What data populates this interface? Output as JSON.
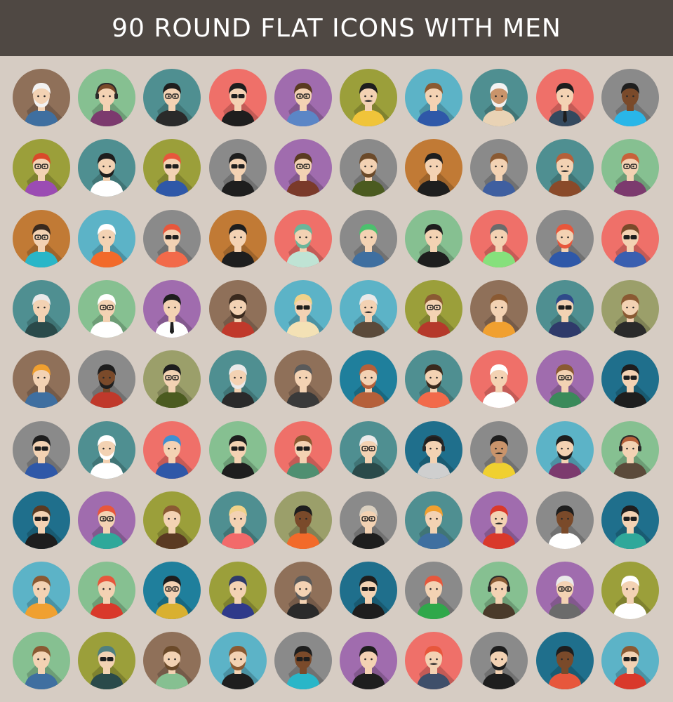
{
  "header": {
    "title": "90 ROUND FLAT ICONS WITH MEN"
  },
  "palette": {
    "header_bg": "#4f4843",
    "page_bg": "#d6ccc3"
  },
  "avatars": [
    {
      "bg": "#8f7059",
      "hair": "#f2f2f2",
      "skin": "#f3d2b3",
      "shirt": "#3f6fa0",
      "acc": "beard"
    },
    {
      "bg": "#86c091",
      "hair": "#7a4a2a",
      "skin": "#f3d2b3",
      "shirt": "#7c3a6e",
      "acc": "headset"
    },
    {
      "bg": "#4f8f91",
      "hair": "#1e1e1e",
      "skin": "#f3d2b3",
      "shirt": "#2a2a2a",
      "acc": "glasses"
    },
    {
      "bg": "#ef7069",
      "hair": "#1e1e1e",
      "skin": "#f3d2b3",
      "shirt": "#1e1e1e",
      "acc": "sunglasses"
    },
    {
      "bg": "#a06cae",
      "hair": "#5a3a22",
      "skin": "#f3d2b3",
      "shirt": "#5b86c6",
      "acc": "glasses"
    },
    {
      "bg": "#9b9f3a",
      "hair": "#1e1e1e",
      "skin": "#f3d2b3",
      "shirt": "#f0c43a",
      "acc": "mustache"
    },
    {
      "bg": "#5cb3c7",
      "hair": "#8a5a33",
      "skin": "#f3d2b3",
      "shirt": "#2f58a8",
      "acc": "none"
    },
    {
      "bg": "#4f8f91",
      "hair": "#f2f2f2",
      "skin": "#c9946b",
      "shirt": "#e9d3b5",
      "acc": "beard"
    },
    {
      "bg": "#ef7069",
      "hair": "#1e1e1e",
      "skin": "#f3d2b3",
      "shirt": "#34495e",
      "acc": "tie"
    },
    {
      "bg": "#8a8a8a",
      "hair": "#1e1e1e",
      "skin": "#7a4a2a",
      "shirt": "#29b6e8",
      "acc": "none"
    },
    {
      "bg": "#9b9f3a",
      "hair": "#d94a2a",
      "skin": "#f3d2b3",
      "shirt": "#9b4cb3",
      "acc": "glasses"
    },
    {
      "bg": "#4f8f91",
      "hair": "#1e1e1e",
      "skin": "#f3d2b3",
      "shirt": "#ffffff",
      "acc": "beard"
    },
    {
      "bg": "#9b9f3a",
      "hair": "#e7573c",
      "skin": "#f3d2b3",
      "shirt": "#2f58a8",
      "acc": "sunglasses"
    },
    {
      "bg": "#8a8a8a",
      "hair": "#1e1e1e",
      "skin": "#f3d2b3",
      "shirt": "#1e1e1e",
      "acc": "sunglasses"
    },
    {
      "bg": "#a06cae",
      "hair": "#5a3a22",
      "skin": "#f3d2b3",
      "shirt": "#7a3a2a",
      "acc": "glasses"
    },
    {
      "bg": "#8a8a8a",
      "hair": "#6b4a2a",
      "skin": "#f3d2b3",
      "shirt": "#4b5b20",
      "acc": "beard"
    },
    {
      "bg": "#c17a35",
      "hair": "#1e1e1e",
      "skin": "#f3d2b3",
      "shirt": "#1e1e1e",
      "acc": "none"
    },
    {
      "bg": "#8a8a8a",
      "hair": "#8a5a33",
      "skin": "#f3d2b3",
      "shirt": "#3f5fa0",
      "acc": "none"
    },
    {
      "bg": "#4f8f91",
      "hair": "#b5603a",
      "skin": "#f3d2b3",
      "shirt": "#8a4a2a",
      "acc": "mustache"
    },
    {
      "bg": "#86c091",
      "hair": "#c8623a",
      "skin": "#f3d2b3",
      "shirt": "#7c3a6e",
      "acc": "glasses"
    },
    {
      "bg": "#c17a35",
      "hair": "#3a2a1e",
      "skin": "#f3d2b3",
      "shirt": "#29b6c8",
      "acc": "glasses"
    },
    {
      "bg": "#5cb3c7",
      "hair": "#ffffff",
      "skin": "#f3d2b3",
      "shirt": "#f26a2a",
      "acc": "none"
    },
    {
      "bg": "#8a8a8a",
      "hair": "#e7573c",
      "skin": "#f3d2b3",
      "shirt": "#f26a4a",
      "acc": "sunglasses"
    },
    {
      "bg": "#c17a35",
      "hair": "#1e1e1e",
      "skin": "#f3d2b3",
      "shirt": "#1e1e1e",
      "acc": "none"
    },
    {
      "bg": "#ef7069",
      "hair": "#6bb59a",
      "skin": "#f3d2b3",
      "shirt": "#bfe3d4",
      "acc": "beard"
    },
    {
      "bg": "#8a8a8a",
      "hair": "#4cc06e",
      "skin": "#f3d2b3",
      "shirt": "#3f6fa0",
      "acc": "none"
    },
    {
      "bg": "#86c091",
      "hair": "#1e1e1e",
      "skin": "#f3d2b3",
      "shirt": "#1e1e1e",
      "acc": "none"
    },
    {
      "bg": "#ef7069",
      "hair": "#6b6b6b",
      "skin": "#f3d2b3",
      "shirt": "#86e07c",
      "acc": "none"
    },
    {
      "bg": "#8a8a8a",
      "hair": "#e7573c",
      "skin": "#f3d2b3",
      "shirt": "#2f58a8",
      "acc": "beard"
    },
    {
      "bg": "#ef7069",
      "hair": "#7a4a2a",
      "skin": "#f3d2b3",
      "shirt": "#3a5fb0",
      "acc": "sunglasses"
    },
    {
      "bg": "#4f8f91",
      "hair": "#e9e9e9",
      "skin": "#f3d2b3",
      "shirt": "#2a4a4a",
      "acc": "none"
    },
    {
      "bg": "#86c091",
      "hair": "#ffffff",
      "skin": "#f3d2b3",
      "shirt": "#ffffff",
      "acc": "glasses"
    },
    {
      "bg": "#a06cae",
      "hair": "#1e1e1e",
      "skin": "#f3d2b3",
      "shirt": "#ffffff",
      "acc": "tie"
    },
    {
      "bg": "#8f7059",
      "hair": "#3a2a1e",
      "skin": "#f3d2b3",
      "shirt": "#c0392b",
      "acc": "beard"
    },
    {
      "bg": "#5cb3c7",
      "hair": "#f0d28a",
      "skin": "#f3d2b3",
      "shirt": "#f3e1b5",
      "acc": "sunglasses"
    },
    {
      "bg": "#5cb3c7",
      "hair": "#e9e9e9",
      "skin": "#f3d2b3",
      "shirt": "#5b4a3a",
      "acc": "mustache"
    },
    {
      "bg": "#9b9f3a",
      "hair": "#8a5a33",
      "skin": "#f3d2b3",
      "shirt": "#b5392b",
      "acc": "glasses"
    },
    {
      "bg": "#8f7059",
      "hair": "#8a5a33",
      "skin": "#f3d2b3",
      "shirt": "#f0a030",
      "acc": "none"
    },
    {
      "bg": "#4f8f91",
      "hair": "#2f4a8a",
      "skin": "#f3d2b3",
      "shirt": "#2f3a6a",
      "acc": "sunglasses"
    },
    {
      "bg": "#9b9f6a",
      "hair": "#8a5a33",
      "skin": "#f3d2b3",
      "shirt": "#2a2a2a",
      "acc": "beard"
    },
    {
      "bg": "#8f7059",
      "hair": "#f0a030",
      "skin": "#f3d2b3",
      "shirt": "#3f6fa0",
      "acc": "none"
    },
    {
      "bg": "#8a8a8a",
      "hair": "#1e1e1e",
      "skin": "#7a4a2a",
      "shirt": "#c0392b",
      "acc": "beard"
    },
    {
      "bg": "#9b9f6a",
      "hair": "#1e1e1e",
      "skin": "#f3d2b3",
      "shirt": "#4b5b20",
      "acc": "glasses"
    },
    {
      "bg": "#4f8f91",
      "hair": "#e9e9e9",
      "skin": "#f3d2b3",
      "shirt": "#2a2a2a",
      "acc": "beard"
    },
    {
      "bg": "#8f7059",
      "hair": "#5a5a5a",
      "skin": "#f3d2b3",
      "shirt": "#3a3a3a",
      "acc": "none"
    },
    {
      "bg": "#1f7f9c",
      "hair": "#b5603a",
      "skin": "#f3d2b3",
      "shirt": "#b5603a",
      "acc": "beard"
    },
    {
      "bg": "#4f8f91",
      "hair": "#3a2a1e",
      "skin": "#f3d2b3",
      "shirt": "#f26a4a",
      "acc": "beard"
    },
    {
      "bg": "#ef7069",
      "hair": "#ffffff",
      "skin": "#f3d2b3",
      "shirt": "#ffffff",
      "acc": "none"
    },
    {
      "bg": "#a06cae",
      "hair": "#8a5a33",
      "skin": "#f3d2b3",
      "shirt": "#3a8a5a",
      "acc": "glasses"
    },
    {
      "bg": "#1f6f8c",
      "hair": "#1e1e1e",
      "skin": "#f3d2b3",
      "shirt": "#1e1e1e",
      "acc": "sunglasses"
    },
    {
      "bg": "#8a8a8a",
      "hair": "#1e1e1e",
      "skin": "#f3d2b3",
      "shirt": "#2f58a8",
      "acc": "sunglasses"
    },
    {
      "bg": "#4f8f91",
      "hair": "#ffffff",
      "skin": "#f3d2b3",
      "shirt": "#ffffff",
      "acc": "beard"
    },
    {
      "bg": "#ef7069",
      "hair": "#3f8fd0",
      "skin": "#f3d2b3",
      "shirt": "#2f58a8",
      "acc": "none"
    },
    {
      "bg": "#86c091",
      "hair": "#1e1e1e",
      "skin": "#f3d2b3",
      "shirt": "#1e1e1e",
      "acc": "sunglasses"
    },
    {
      "bg": "#ef7069",
      "hair": "#8a5a33",
      "skin": "#f3d2b3",
      "shirt": "#4f8f71",
      "acc": "sunglasses"
    },
    {
      "bg": "#4f8f91",
      "hair": "#e9e9e9",
      "skin": "#f3d2b3",
      "shirt": "#2a4a4a",
      "acc": "glasses"
    },
    {
      "bg": "#1f6f8c",
      "hair": "#1e1e1e",
      "skin": "#f3d2b3",
      "shirt": "#cfcfcf",
      "acc": "headset"
    },
    {
      "bg": "#8a8a8a",
      "hair": "#1e1e1e",
      "skin": "#c9946b",
      "shirt": "#f0d030",
      "acc": "mustache"
    },
    {
      "bg": "#5cb3c7",
      "hair": "#1e1e1e",
      "skin": "#f3d2b3",
      "shirt": "#7c3a6e",
      "acc": "beard"
    },
    {
      "bg": "#86c091",
      "hair": "#b5603a",
      "skin": "#f3d2b3",
      "shirt": "#5b4a3a",
      "acc": "headset"
    },
    {
      "bg": "#1f6f8c",
      "hair": "#5a3a22",
      "skin": "#f3d2b3",
      "shirt": "#1e1e1e",
      "acc": "sunglasses"
    },
    {
      "bg": "#a06cae",
      "hair": "#e7573c",
      "skin": "#f3d2b3",
      "shirt": "#2fa89a",
      "acc": "glasses"
    },
    {
      "bg": "#9b9f3a",
      "hair": "#8a5a33",
      "skin": "#f3d2b3",
      "shirt": "#5a3a22",
      "acc": "none"
    },
    {
      "bg": "#4f8f91",
      "hair": "#f0d28a",
      "skin": "#f3d2b3",
      "shirt": "#f26a6a",
      "acc": "none"
    },
    {
      "bg": "#9b9f6a",
      "hair": "#1e1e1e",
      "skin": "#7a4a2a",
      "shirt": "#f26a2a",
      "acc": "none"
    },
    {
      "bg": "#8a8a8a",
      "hair": "#d9cfc0",
      "skin": "#f3d2b3",
      "shirt": "#1e1e1e",
      "acc": "glasses"
    },
    {
      "bg": "#4f8f91",
      "hair": "#f0a030",
      "skin": "#f3d2b3",
      "shirt": "#3f6fa0",
      "acc": "none"
    },
    {
      "bg": "#a06cae",
      "hair": "#d9392b",
      "skin": "#f3d2b3",
      "shirt": "#d9392b",
      "acc": "mustache"
    },
    {
      "bg": "#8a8a8a",
      "hair": "#1e1e1e",
      "skin": "#7a4a2a",
      "shirt": "#ffffff",
      "acc": "none"
    },
    {
      "bg": "#1f6f8c",
      "hair": "#1e1e1e",
      "skin": "#f3d2b3",
      "shirt": "#2fa89a",
      "acc": "sunglasses"
    },
    {
      "bg": "#5cb3c7",
      "hair": "#8a5a33",
      "skin": "#f3d2b3",
      "shirt": "#f0a030",
      "acc": "none"
    },
    {
      "bg": "#86c091",
      "hair": "#e7573c",
      "skin": "#f3d2b3",
      "shirt": "#d9392b",
      "acc": "none"
    },
    {
      "bg": "#1f7f9c",
      "hair": "#1e1e1e",
      "skin": "#f3d2b3",
      "shirt": "#d9b030",
      "acc": "glasses"
    },
    {
      "bg": "#9b9f3a",
      "hair": "#2f3a6a",
      "skin": "#f3d2b3",
      "shirt": "#2f3a8a",
      "acc": "none"
    },
    {
      "bg": "#8f7059",
      "hair": "#5a5a5a",
      "skin": "#f3d2b3",
      "shirt": "#2a2a2a",
      "acc": "beard"
    },
    {
      "bg": "#1f6f8c",
      "hair": "#1e1e1e",
      "skin": "#f3d2b3",
      "shirt": "#1e1e1e",
      "acc": "sunglasses"
    },
    {
      "bg": "#8a8a8a",
      "hair": "#e7573c",
      "skin": "#f3d2b3",
      "shirt": "#2fa84a",
      "acc": "none"
    },
    {
      "bg": "#86c091",
      "hair": "#8a5a33",
      "skin": "#f3d2b3",
      "shirt": "#4a3a2a",
      "acc": "headset"
    },
    {
      "bg": "#a06cae",
      "hair": "#e9e9e9",
      "skin": "#f3d2b3",
      "shirt": "#6b6b6b",
      "acc": "glasses"
    },
    {
      "bg": "#9b9f3a",
      "hair": "#ffffff",
      "skin": "#f3d2b3",
      "shirt": "#ffffff",
      "acc": "none"
    },
    {
      "bg": "#86c091",
      "hair": "#8a5a33",
      "skin": "#f3d2b3",
      "shirt": "#3f6fa0",
      "acc": "none"
    },
    {
      "bg": "#9b9f3a",
      "hair": "#4f7f7f",
      "skin": "#f3d2b3",
      "shirt": "#2a4a4a",
      "acc": "sunglasses"
    },
    {
      "bg": "#8f7059",
      "hair": "#6b4a2a",
      "skin": "#f3d2b3",
      "shirt": "#86c091",
      "acc": "beard"
    },
    {
      "bg": "#5cb3c7",
      "hair": "#8a5a33",
      "skin": "#f3d2b3",
      "shirt": "#1e1e1e",
      "acc": "beard"
    },
    {
      "bg": "#8a8a8a",
      "hair": "#1e1e1e",
      "skin": "#7a4a2a",
      "shirt": "#29b6c8",
      "acc": "sunglasses"
    },
    {
      "bg": "#a06cae",
      "hair": "#1e1e1e",
      "skin": "#f3d2b3",
      "shirt": "#1e1e1e",
      "acc": "none"
    },
    {
      "bg": "#ef7069",
      "hair": "#e7573c",
      "skin": "#f3d2b3",
      "shirt": "#3f4f6a",
      "acc": "mustache"
    },
    {
      "bg": "#8a8a8a",
      "hair": "#1e1e1e",
      "skin": "#f3d2b3",
      "shirt": "#1e1e1e",
      "acc": "beard"
    },
    {
      "bg": "#1f6f8c",
      "hair": "#1e1e1e",
      "skin": "#7a4a2a",
      "shirt": "#e7573c",
      "acc": "none"
    },
    {
      "bg": "#5cb3c7",
      "hair": "#8a5a33",
      "skin": "#f3d2b3",
      "shirt": "#d9392b",
      "acc": "sunglasses"
    }
  ]
}
